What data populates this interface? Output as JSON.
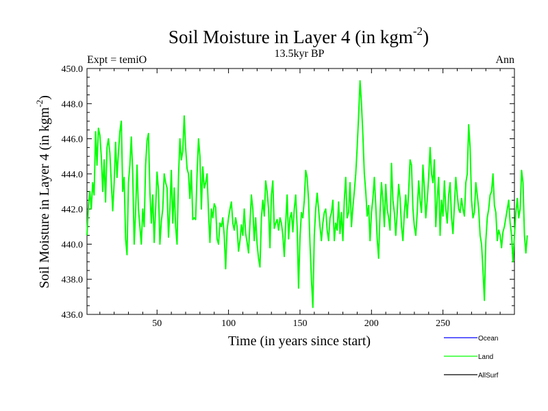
{
  "chart_data": {
    "type": "line",
    "title": "Soil Moisture in Layer 4 (in kgm",
    "title_sup": "-2",
    "title_close": ")",
    "subtitle_left": "Expt = temiO",
    "subtitle_center": "13.5kyr BP",
    "subtitle_right": "Ann",
    "xlabel": "Time (in years since start)",
    "ylabel": "Soil Moisture in Layer 4 (in kgm",
    "ylabel_sup": "-2",
    "ylabel_close": ")",
    "xlim": [
      1,
      300
    ],
    "ylim": [
      436.0,
      450.0
    ],
    "x_ticks": [
      50,
      100,
      150,
      200,
      250
    ],
    "x_tick_labels": [
      "50",
      "100",
      "150",
      "200",
      "250"
    ],
    "y_ticks": [
      436.0,
      438.0,
      440.0,
      442.0,
      444.0,
      446.0,
      448.0,
      450.0
    ],
    "y_tick_labels": [
      "436.0",
      "438.0",
      "440.0",
      "442.0",
      "444.0",
      "446.0",
      "448.0",
      "450.0"
    ],
    "series": [
      {
        "name": "Ocean",
        "color": "#0000ff",
        "values": []
      },
      {
        "name": "Land",
        "color": "#00ff00",
        "x_start": 1,
        "x_step": 1,
        "values": [
          440.5,
          442.2,
          443.0,
          442.0,
          443.5,
          442.8,
          446.4,
          444.5,
          446.6,
          446.2,
          445.0,
          443.0,
          444.8,
          442.4,
          445.5,
          446.0,
          445.2,
          443.5,
          441.9,
          443.5,
          445.8,
          443.8,
          445.2,
          446.4,
          447.0,
          443.0,
          443.8,
          440.3,
          439.4,
          443.5,
          444.5,
          446.1,
          444.0,
          440.0,
          441.8,
          444.5,
          442.0,
          441.0,
          440.0,
          442.0,
          441.0,
          444.5,
          445.9,
          446.3,
          443.0,
          441.2,
          442.8,
          440.1,
          442.0,
          444.1,
          443.1,
          440.0,
          441.3,
          442.0,
          444.0,
          443.5,
          443.2,
          440.4,
          442.0,
          444.2,
          441.2,
          443.2,
          441.0,
          440.0,
          443.8,
          446.0,
          444.8,
          445.3,
          447.3,
          445.5,
          444.3,
          444.0,
          442.6,
          444.2,
          441.4,
          441.5,
          441.4,
          444.0,
          446.0,
          445.0,
          442.0,
          444.4,
          443.2,
          443.5,
          444.0,
          441.8,
          440.1,
          442.0,
          441.5,
          442.3,
          442.1,
          440.3,
          440.0,
          441.2,
          441.0,
          441.5,
          440.5,
          438.6,
          440.8,
          441.5,
          442.0,
          442.4,
          441.2,
          440.8,
          441.5,
          441.0,
          439.6,
          440.2,
          441.1,
          440.5,
          442.0,
          440.6,
          440.1,
          439.5,
          441.2,
          442.8,
          442.0,
          440.2,
          441.5,
          440.0,
          439.2,
          438.7,
          441.5,
          442.5,
          441.6,
          443.6,
          443.0,
          442.0,
          439.8,
          442.8,
          443.6,
          440.9,
          441.2,
          441.4,
          440.8,
          441.5,
          441.2,
          440.5,
          439.3,
          441.2,
          442.8,
          440.3,
          441.5,
          441.8,
          440.7,
          442.0,
          442.8,
          441.0,
          437.5,
          440.4,
          441.8,
          441.5,
          442.5,
          444.2,
          443.8,
          442.5,
          440.0,
          438.0,
          436.4,
          440.5,
          442.0,
          442.9,
          442.0,
          441.0,
          440.2,
          441.2,
          441.8,
          442.0,
          440.8,
          440.2,
          441.5,
          441.8,
          442.5,
          440.2,
          441.2,
          440.8,
          442.4,
          440.6,
          441.8,
          440.2,
          442.5,
          443.8,
          441.5,
          441.8,
          443.5,
          441.0,
          442.1,
          443.0,
          444.0,
          445.5,
          447.3,
          449.3,
          448.0,
          446.2,
          444.0,
          443.0,
          441.6,
          442.2,
          440.2,
          441.8,
          442.6,
          443.8,
          442.2,
          440.3,
          439.2,
          441.8,
          443.5,
          442.5,
          441.0,
          443.4,
          442.0,
          441.5,
          440.8,
          444.6,
          442.5,
          441.8,
          440.5,
          441.8,
          443.4,
          442.6,
          441.0,
          440.2,
          441.8,
          442.8,
          441.5,
          443.0,
          444.8,
          444.5,
          442.0,
          441.0,
          440.5,
          441.8,
          443.6,
          442.5,
          441.8,
          444.5,
          443.2,
          441.5,
          442.5,
          443.8,
          445.5,
          444.0,
          443.5,
          444.8,
          441.0,
          442.6,
          443.8,
          440.5,
          442.5,
          441.6,
          443.6,
          442.0,
          441.2,
          442.8,
          443.5,
          441.5,
          440.6,
          442.2,
          443.8,
          442.8,
          442.0,
          441.8,
          442.6,
          442.0,
          441.6,
          443.5,
          444.0,
          446.8,
          445.5,
          442.5,
          441.5,
          441.8,
          443.5,
          442.8,
          442.0,
          440.5,
          440.0,
          438.5,
          436.8,
          440.2,
          441.5,
          442.0,
          442.8,
          443.0,
          444.0,
          442.2,
          441.8,
          440.2,
          440.8,
          440.5,
          439.8,
          440.7,
          441.0,
          441.5,
          442.0,
          442.5,
          441.2,
          440.5,
          439.0,
          440.5,
          441.8,
          442.6,
          441.5,
          442.0,
          444.2,
          443.5,
          440.5,
          439.5,
          440.5
        ]
      },
      {
        "name": "AllSurf",
        "color": "#000000",
        "values": []
      }
    ],
    "legend": [
      {
        "name": "Ocean",
        "color": "#0000ff"
      },
      {
        "name": "Land",
        "color": "#00ff00"
      },
      {
        "name": "AllSurf",
        "color": "#000000"
      }
    ],
    "legend_position": "bottom-right"
  }
}
